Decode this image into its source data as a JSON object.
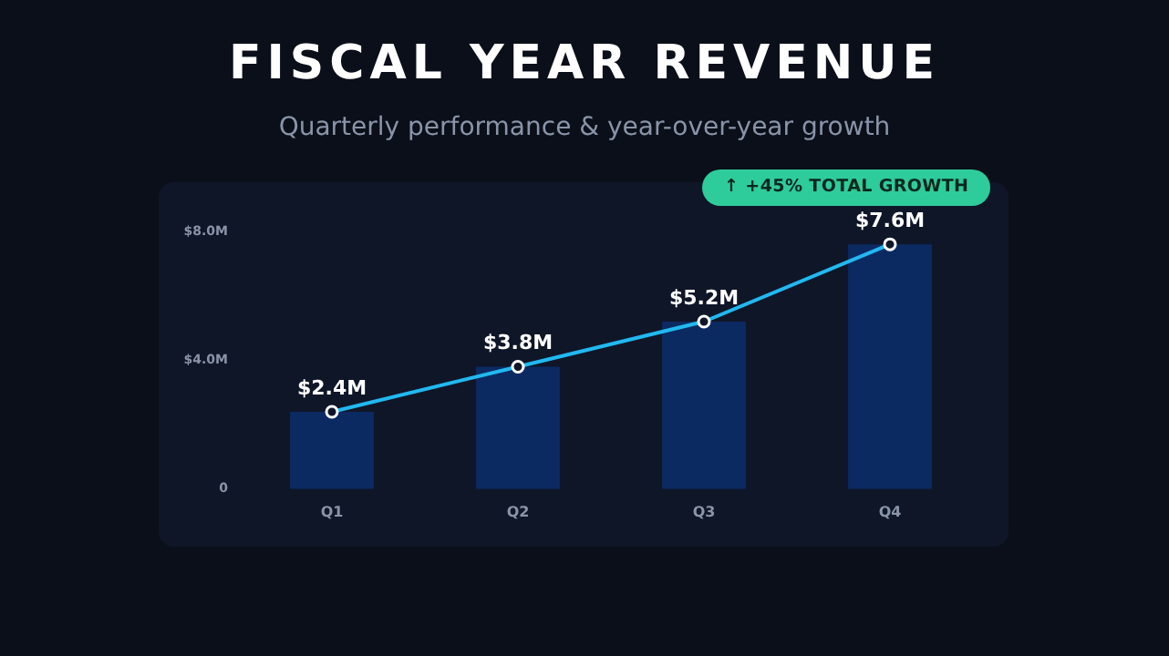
{
  "chart_data": {
    "type": "bar",
    "title": "FISCAL YEAR REVENUE",
    "subtitle": "Quarterly performance & year-over-year growth",
    "annotations": [
      "↑ +45% TOTAL GROWTH"
    ],
    "categories": [
      "Q1",
      "Q2",
      "Q3",
      "Q4"
    ],
    "series": [
      {
        "color": "#0c2a62",
        "values": [
          2.4,
          3.8,
          5.2,
          7.6
        ]
      },
      {
        "type": "line",
        "color": "#22b8f0",
        "values": [
          2.4,
          3.8,
          5.2,
          7.6
        ],
        "value_labels": [
          "$2.4M",
          "$3.8M",
          "$5.2M",
          "$7.6M"
        ]
      }
    ],
    "ylim": [
      0,
      8
    ],
    "yticks": [
      0,
      {
        "value": 4,
        "label": "$4.0M"
      },
      {
        "value": 8,
        "label": "$8.0M"
      }
    ],
    "grid": false,
    "legend": false,
    "marker": "circle",
    "line_style": "solid"
  }
}
